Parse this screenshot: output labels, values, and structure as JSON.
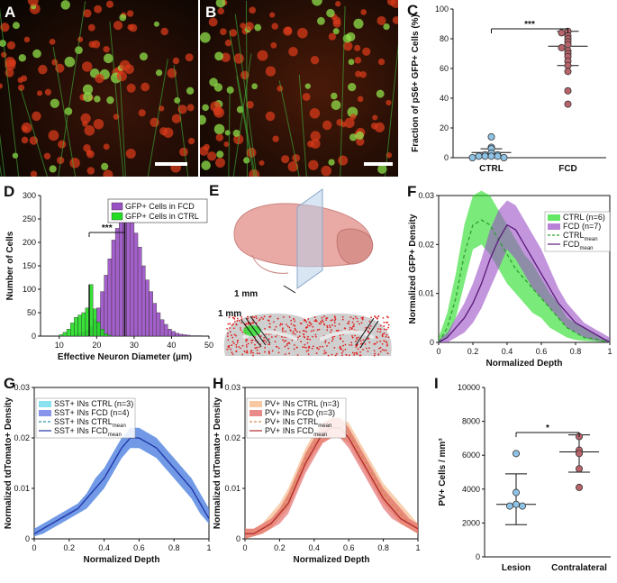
{
  "panels": {
    "A": {
      "letter": "A"
    },
    "B": {
      "letter": "B"
    },
    "C": {
      "letter": "C"
    },
    "D": {
      "letter": "D"
    },
    "E": {
      "letter": "E",
      "scale_label_top": "1 mm",
      "scale_label_bottom": "1 mm"
    },
    "F": {
      "letter": "F"
    },
    "G": {
      "letter": "G"
    },
    "H": {
      "letter": "H"
    },
    "I": {
      "letter": "I"
    }
  },
  "colors": {
    "ctrl_blue": "#8ec3e6",
    "fcd_red": "#b9646a",
    "gfp_green": "#22dd22",
    "fcd_purple": "#9a4fc4",
    "sst_cyan": "#5ad6e8",
    "sst_blue": "#5566e0",
    "pv_orange": "#f4b07a",
    "pv_red": "#e05a5a"
  },
  "chart_data": [
    {
      "id": "C",
      "type": "scatter",
      "categories": [
        "CTRL",
        "FCD"
      ],
      "ylabel": "Fraction of pS6+ GFP+ Cells (%)",
      "ylim": [
        0,
        100
      ],
      "yticks": [
        0,
        20,
        40,
        60,
        80,
        100
      ],
      "significance": "***",
      "series": [
        {
          "category": "CTRL",
          "values": [
            14,
            7,
            6,
            3,
            2,
            2,
            1,
            1,
            1,
            1,
            0,
            0
          ],
          "mean": 3.5,
          "sd_low": 1,
          "sd_high": 6
        },
        {
          "category": "FCD",
          "values": [
            85,
            84,
            82,
            80,
            78,
            76,
            74,
            72,
            70,
            68,
            65,
            62,
            58,
            45,
            36
          ],
          "mean": 75,
          "sd_low": 62,
          "sd_high": 85
        }
      ]
    },
    {
      "id": "D",
      "type": "bar",
      "xlabel": "Effective Neuron Diameter (µm)",
      "ylabel": "Number of Cells",
      "xlim": [
        5,
        50
      ],
      "xticks": [
        10,
        20,
        30,
        40,
        50
      ],
      "ylim": [
        0,
        300
      ],
      "yticks": [
        0,
        50,
        100,
        150,
        200,
        250,
        300
      ],
      "significance": "***",
      "legend": [
        "GFP+ Cells in FCD",
        "GFP+ Cells in CTRL"
      ],
      "bin_width": 1,
      "series": [
        {
          "name": "GFP+ Cells in FCD",
          "x": [
            13,
            14,
            15,
            16,
            17,
            18,
            19,
            20,
            21,
            22,
            23,
            24,
            25,
            26,
            27,
            28,
            29,
            30,
            31,
            32,
            33,
            34,
            35,
            36,
            37,
            38,
            39,
            40,
            41,
            42,
            43,
            44,
            45,
            46,
            47
          ],
          "values": [
            2,
            3,
            5,
            8,
            12,
            20,
            35,
            60,
            95,
            130,
            165,
            205,
            230,
            265,
            275,
            245,
            265,
            220,
            190,
            150,
            120,
            95,
            70,
            50,
            35,
            25,
            15,
            10,
            6,
            4,
            3,
            2,
            1,
            1,
            1
          ],
          "median": 27.5
        },
        {
          "name": "GFP+ Cells in CTRL",
          "x": [
            10,
            11,
            12,
            13,
            14,
            15,
            16,
            17,
            18,
            19,
            20,
            21,
            22,
            23
          ],
          "values": [
            3,
            8,
            15,
            28,
            40,
            45,
            50,
            60,
            110,
            58,
            30,
            15,
            5,
            2
          ],
          "median": 18
        }
      ]
    },
    {
      "id": "F",
      "type": "area",
      "xlabel": "Normalized Depth",
      "ylabel": "Normalized GFP+ Density",
      "xlim": [
        0,
        1
      ],
      "xticks": [
        0,
        0.2,
        0.4,
        0.6,
        0.8,
        1
      ],
      "ylim": [
        0,
        0.03
      ],
      "yticks": [
        0,
        0.01,
        0.02,
        0.03
      ],
      "legend_labels": [
        "CTRL (n=6)",
        "FCD (n=7)",
        "CTRL",
        "FCD"
      ],
      "legend_subscript": "mean",
      "x": [
        0,
        0.05,
        0.1,
        0.15,
        0.2,
        0.25,
        0.3,
        0.35,
        0.4,
        0.45,
        0.5,
        0.55,
        0.6,
        0.65,
        0.7,
        0.75,
        0.8,
        0.85,
        0.9,
        0.95,
        1
      ],
      "series": [
        {
          "name": "CTRL",
          "mean": [
            0,
            0.003,
            0.009,
            0.018,
            0.024,
            0.025,
            0.024,
            0.021,
            0.018,
            0.015,
            0.013,
            0.011,
            0.009,
            0.007,
            0.005,
            0.003,
            0.002,
            0.001,
            0.0008,
            0.0004,
            0
          ],
          "low": [
            0,
            0.001,
            0.005,
            0.012,
            0.019,
            0.02,
            0.018,
            0.015,
            0.012,
            0.01,
            0.008,
            0.006,
            0.005,
            0.003,
            0.002,
            0.001,
            0.0005,
            0.0003,
            0.0002,
            0.0001,
            0
          ],
          "high": [
            0.001,
            0.006,
            0.014,
            0.024,
            0.03,
            0.031,
            0.03,
            0.027,
            0.024,
            0.021,
            0.018,
            0.016,
            0.013,
            0.01,
            0.008,
            0.005,
            0.004,
            0.003,
            0.002,
            0.001,
            0.0005
          ]
        },
        {
          "name": "FCD",
          "mean": [
            0,
            0.001,
            0.003,
            0.005,
            0.008,
            0.012,
            0.017,
            0.021,
            0.024,
            0.023,
            0.02,
            0.017,
            0.014,
            0.011,
            0.008,
            0.006,
            0.004,
            0.003,
            0.002,
            0.001,
            0
          ],
          "low": [
            0,
            0,
            0.001,
            0.002,
            0.004,
            0.007,
            0.011,
            0.015,
            0.019,
            0.017,
            0.014,
            0.011,
            0.009,
            0.007,
            0.005,
            0.003,
            0.002,
            0.001,
            0.0005,
            0.0002,
            0
          ],
          "high": [
            0.0005,
            0.002,
            0.005,
            0.008,
            0.012,
            0.017,
            0.023,
            0.027,
            0.029,
            0.028,
            0.025,
            0.022,
            0.019,
            0.015,
            0.011,
            0.008,
            0.006,
            0.004,
            0.003,
            0.002,
            0.001
          ]
        }
      ]
    },
    {
      "id": "G",
      "type": "area",
      "xlabel": "Normalized Depth",
      "ylabel": "Normalized tdTomato+ Density",
      "xlim": [
        0,
        1
      ],
      "xticks": [
        0,
        0.2,
        0.4,
        0.6,
        0.8,
        1
      ],
      "ylim": [
        0,
        0.03
      ],
      "yticks": [
        0,
        0.01,
        0.02,
        0.03
      ],
      "legend_labels": [
        "SST+ INs CTRL (n=3)",
        "SST+ INs FCD (n=4)",
        "SST+ INs CTRL",
        "SST+ INs FCD"
      ],
      "legend_subscript": "mean",
      "x": [
        0,
        0.05,
        0.1,
        0.15,
        0.2,
        0.25,
        0.3,
        0.35,
        0.4,
        0.45,
        0.5,
        0.55,
        0.6,
        0.65,
        0.7,
        0.75,
        0.8,
        0.85,
        0.9,
        0.95,
        1
      ],
      "series": [
        {
          "name": "SST+ INs CTRL",
          "mean": [
            0.001,
            0.002,
            0.003,
            0.004,
            0.005,
            0.006,
            0.008,
            0.01,
            0.012,
            0.015,
            0.018,
            0.02,
            0.02,
            0.019,
            0.018,
            0.016,
            0.014,
            0.012,
            0.01,
            0.007,
            0.004
          ],
          "low": [
            0.0005,
            0.001,
            0.002,
            0.003,
            0.004,
            0.005,
            0.006,
            0.008,
            0.01,
            0.013,
            0.016,
            0.018,
            0.018,
            0.017,
            0.016,
            0.014,
            0.012,
            0.01,
            0.008,
            0.005,
            0.003
          ],
          "high": [
            0.002,
            0.003,
            0.004,
            0.005,
            0.006,
            0.007,
            0.009,
            0.012,
            0.014,
            0.017,
            0.02,
            0.022,
            0.022,
            0.021,
            0.02,
            0.018,
            0.016,
            0.014,
            0.012,
            0.009,
            0.006
          ]
        },
        {
          "name": "SST+ INs FCD",
          "mean": [
            0.001,
            0.002,
            0.003,
            0.004,
            0.005,
            0.006,
            0.008,
            0.01,
            0.012,
            0.015,
            0.018,
            0.02,
            0.02,
            0.019,
            0.018,
            0.016,
            0.014,
            0.012,
            0.01,
            0.007,
            0.004
          ],
          "low": [
            0.0005,
            0.001,
            0.002,
            0.003,
            0.004,
            0.005,
            0.006,
            0.008,
            0.01,
            0.013,
            0.016,
            0.018,
            0.018,
            0.017,
            0.016,
            0.014,
            0.012,
            0.01,
            0.008,
            0.005,
            0.003
          ],
          "high": [
            0.002,
            0.003,
            0.004,
            0.005,
            0.006,
            0.007,
            0.009,
            0.012,
            0.014,
            0.017,
            0.02,
            0.022,
            0.022,
            0.021,
            0.02,
            0.018,
            0.016,
            0.014,
            0.012,
            0.009,
            0.006
          ]
        }
      ]
    },
    {
      "id": "H",
      "type": "area",
      "xlabel": "Normalized Depth",
      "ylabel": "Normalized tdTomato+ Density",
      "xlim": [
        0,
        1
      ],
      "xticks": [
        0,
        0.2,
        0.4,
        0.6,
        0.8,
        1
      ],
      "ylim": [
        0,
        0.03
      ],
      "yticks": [
        0,
        0.01,
        0.02,
        0.03
      ],
      "legend_labels": [
        "PV+ INs CTRL (n=3)",
        "PV+ INs FCD (n=3)",
        "PV+ INs CTRL",
        "PV+ INs FCD"
      ],
      "legend_subscript": "mean",
      "x": [
        0,
        0.05,
        0.1,
        0.15,
        0.2,
        0.25,
        0.3,
        0.35,
        0.4,
        0.45,
        0.5,
        0.55,
        0.6,
        0.65,
        0.7,
        0.75,
        0.8,
        0.85,
        0.9,
        0.95,
        1
      ],
      "series": [
        {
          "name": "PV+ INs CTRL",
          "mean": [
            0.001,
            0.001,
            0.002,
            0.003,
            0.005,
            0.008,
            0.012,
            0.016,
            0.019,
            0.021,
            0.022,
            0.022,
            0.021,
            0.018,
            0.015,
            0.012,
            0.009,
            0.007,
            0.005,
            0.003,
            0.002
          ],
          "low": [
            0,
            0.0005,
            0.001,
            0.002,
            0.004,
            0.006,
            0.01,
            0.014,
            0.017,
            0.019,
            0.02,
            0.02,
            0.019,
            0.016,
            0.013,
            0.01,
            0.007,
            0.005,
            0.003,
            0.002,
            0.001
          ],
          "high": [
            0.002,
            0.002,
            0.003,
            0.005,
            0.007,
            0.01,
            0.014,
            0.018,
            0.021,
            0.023,
            0.024,
            0.024,
            0.023,
            0.02,
            0.017,
            0.014,
            0.011,
            0.009,
            0.007,
            0.005,
            0.003
          ]
        },
        {
          "name": "PV+ INs FCD",
          "mean": [
            0.001,
            0.001,
            0.002,
            0.003,
            0.005,
            0.007,
            0.011,
            0.015,
            0.018,
            0.021,
            0.022,
            0.022,
            0.02,
            0.017,
            0.014,
            0.011,
            0.008,
            0.006,
            0.004,
            0.003,
            0.002
          ],
          "low": [
            0,
            0.0005,
            0.001,
            0.002,
            0.003,
            0.005,
            0.009,
            0.013,
            0.016,
            0.019,
            0.02,
            0.02,
            0.018,
            0.015,
            0.012,
            0.009,
            0.006,
            0.004,
            0.003,
            0.002,
            0.001
          ],
          "high": [
            0.002,
            0.002,
            0.003,
            0.004,
            0.006,
            0.009,
            0.013,
            0.017,
            0.02,
            0.023,
            0.024,
            0.024,
            0.022,
            0.019,
            0.016,
            0.013,
            0.01,
            0.008,
            0.006,
            0.004,
            0.003
          ]
        }
      ]
    },
    {
      "id": "I",
      "type": "scatter",
      "categories": [
        "Lesion",
        "Contralateral"
      ],
      "ylabel": "PV+ Cells / mm³",
      "ylim": [
        0,
        10000
      ],
      "yticks": [
        0,
        2000,
        4000,
        6000,
        8000,
        10000
      ],
      "significance": "*",
      "series": [
        {
          "category": "Lesion",
          "values": [
            6100,
            3800,
            3100,
            3000,
            3000
          ],
          "mean": 3100,
          "sd_low": 1900,
          "sd_high": 4900
        },
        {
          "category": "Contralateral",
          "values": [
            7100,
            6300,
            6100,
            5200,
            4100
          ],
          "mean": 6200,
          "sd_low": 5000,
          "sd_high": 7200
        }
      ]
    }
  ]
}
